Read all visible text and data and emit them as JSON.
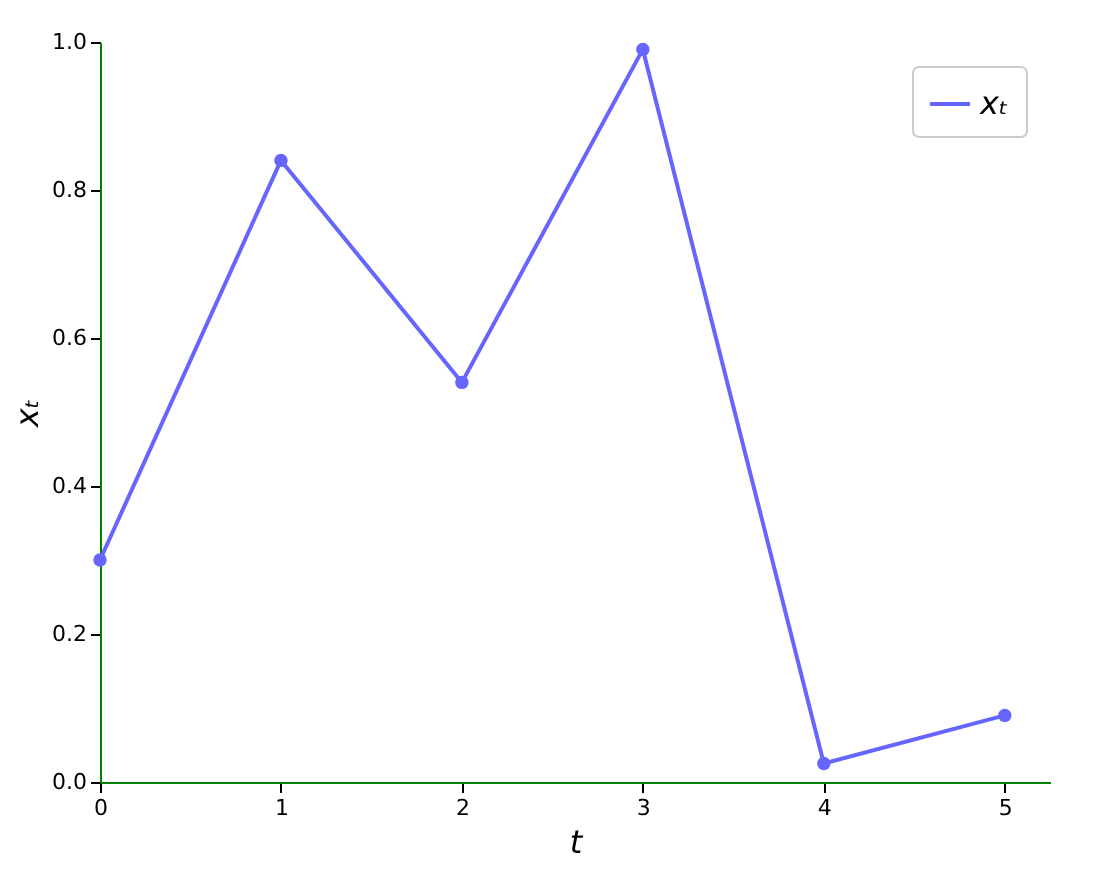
{
  "chart_data": {
    "type": "line",
    "xlabel": "t",
    "ylabel": "xₜ",
    "x": [
      0,
      1,
      2,
      3,
      4,
      5
    ],
    "series": [
      {
        "name": "xₜ",
        "color": "#6666ff",
        "values": [
          0.3,
          0.84,
          0.54,
          0.99,
          0.025,
          0.09
        ]
      }
    ],
    "xlim": [
      0,
      5.25
    ],
    "xticks": [
      0,
      1,
      2,
      3,
      4,
      5
    ],
    "ylim": [
      0,
      1
    ],
    "yticks": [
      {
        "value": 0,
        "label": "0.0"
      },
      0.2,
      0.4,
      0.6,
      0.8,
      {
        "value": 1,
        "label": "1.0"
      }
    ],
    "marker": "circle",
    "line_style": "solid",
    "legend": "top right",
    "grid": false
  }
}
